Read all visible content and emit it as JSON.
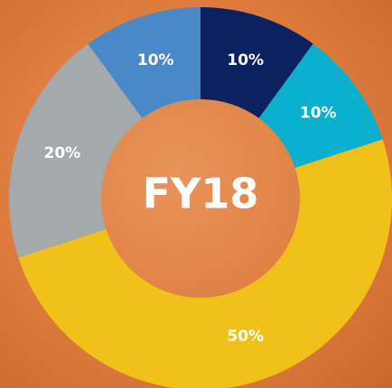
{
  "chart_data": {
    "type": "pie",
    "center_label": "FY18",
    "values": [
      10,
      10,
      50,
      20,
      10
    ],
    "value_labels": [
      "10%",
      "10%",
      "50%",
      "20%",
      "10%"
    ],
    "colors": [
      "#0b2160",
      "#0bb0cf",
      "#f0c11b",
      "#a4a9ab",
      "#4a89c8"
    ],
    "donut": true
  }
}
